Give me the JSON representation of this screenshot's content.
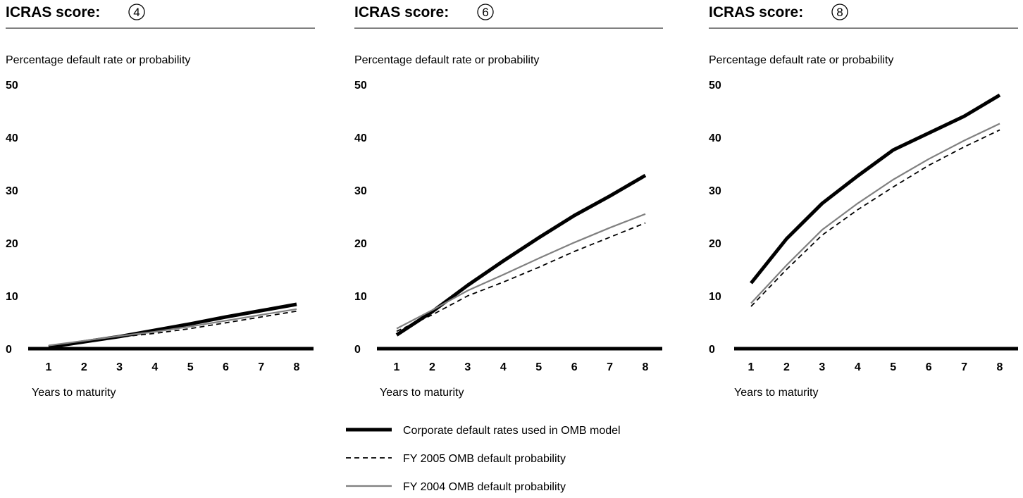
{
  "score_label": "ICRAS score:",
  "ylabel": "Percentage default rate or probability",
  "xlabel": "Years to maturity",
  "y_ticks": [
    "0",
    "10",
    "20",
    "30",
    "40",
    "50"
  ],
  "x_ticks": [
    "1",
    "2",
    "3",
    "4",
    "5",
    "6",
    "7",
    "8"
  ],
  "legend": [
    {
      "label": "Corporate default rates used in OMB model",
      "style": "thick-solid",
      "color": "#000000"
    },
    {
      "label": "FY 2005 OMB default probability",
      "style": "dashed",
      "color": "#000000"
    },
    {
      "label": "FY 2004 OMB default probability",
      "style": "thin-solid",
      "color": "#808080"
    }
  ],
  "chart_data": [
    {
      "type": "line",
      "score": "4",
      "ylabel": "Percentage default rate or probability",
      "xlabel": "Years to maturity",
      "x": [
        1,
        2,
        3,
        4,
        5,
        6,
        7,
        8
      ],
      "ylim": [
        0,
        50
      ],
      "series": [
        {
          "name": "Corporate default rates used in OMB model",
          "values": [
            0.3,
            1.3,
            2.3,
            3.5,
            4.7,
            6.0,
            7.2,
            8.4
          ]
        },
        {
          "name": "FY 2005 OMB default probability",
          "values": [
            0.5,
            1.3,
            2.2,
            2.9,
            3.8,
            4.9,
            6.0,
            7.1
          ]
        },
        {
          "name": "FY 2004 OMB default probability",
          "values": [
            0.6,
            1.5,
            2.4,
            3.2,
            4.2,
            5.3,
            6.4,
            7.5
          ]
        }
      ]
    },
    {
      "type": "line",
      "score": "6",
      "ylabel": "Percentage default rate or probability",
      "xlabel": "Years to maturity",
      "x": [
        1,
        2,
        3,
        4,
        5,
        6,
        7,
        8
      ],
      "ylim": [
        0,
        50
      ],
      "series": [
        {
          "name": "Corporate default rates used in OMB model",
          "values": [
            2.6,
            7.0,
            12.0,
            16.6,
            21.0,
            25.2,
            28.9,
            32.8
          ]
        },
        {
          "name": "FY 2005 OMB default probability",
          "values": [
            3.3,
            6.4,
            10.0,
            12.6,
            15.4,
            18.4,
            21.1,
            23.8
          ]
        },
        {
          "name": "FY 2004 OMB default probability",
          "values": [
            3.8,
            7.3,
            11.0,
            14.0,
            17.1,
            20.1,
            22.9,
            25.5
          ]
        }
      ]
    },
    {
      "type": "line",
      "score": "8",
      "ylabel": "Percentage default rate or probability",
      "xlabel": "Years to maturity",
      "x": [
        1,
        2,
        3,
        4,
        5,
        6,
        7,
        8
      ],
      "ylim": [
        0,
        50
      ],
      "series": [
        {
          "name": "Corporate default rates used in OMB model",
          "values": [
            12.4,
            20.8,
            27.5,
            32.7,
            37.6,
            40.8,
            44.0,
            48.0
          ]
        },
        {
          "name": "FY 2005 OMB default probability",
          "values": [
            8.0,
            15.0,
            21.5,
            26.3,
            30.6,
            34.7,
            38.2,
            41.4
          ]
        },
        {
          "name": "FY 2004 OMB default probability",
          "values": [
            8.6,
            15.8,
            22.5,
            27.5,
            32.0,
            35.9,
            39.4,
            42.6
          ]
        }
      ]
    }
  ]
}
